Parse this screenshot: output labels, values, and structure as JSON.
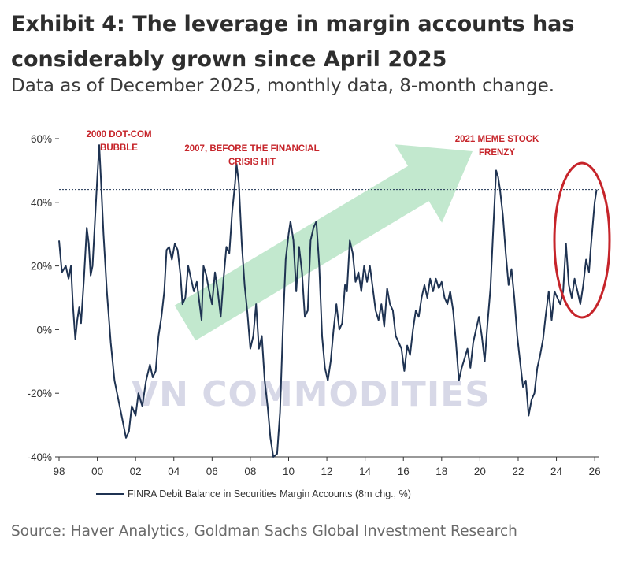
{
  "header": {
    "title": "Exhibit 4: The leverage in margin accounts has considerably grown since April 2025",
    "subtitle": "Data as of December 2025, monthly data, 8-month change."
  },
  "footer": {
    "source": "Source: Haver Analytics, Goldman Sachs Global Investment Research"
  },
  "watermark": {
    "text": "VN COMMODITIES"
  },
  "annotations": {
    "dotcom": [
      "2000 DOT-COM",
      "BUBBLE"
    ],
    "gfc": [
      "2007, BEFORE THE FINANCIAL",
      "CRISIS HIT"
    ],
    "meme": [
      "2021 MEME STOCK",
      "FRENZY"
    ]
  },
  "colors": {
    "line": "#1f3352",
    "annotation": "#c6242a",
    "circle": "#c6242a",
    "arrow": "#8fd5a6",
    "reference_line": "#1f3352"
  },
  "chart_data": {
    "type": "line",
    "title": "",
    "xlabel": "",
    "ylabel": "",
    "x_range": [
      1998,
      2026.2
    ],
    "xtick_labels": [
      "98",
      "00",
      "02",
      "04",
      "06",
      "08",
      "10",
      "12",
      "14",
      "16",
      "18",
      "20",
      "22",
      "24",
      "26"
    ],
    "ylim": [
      -40,
      60
    ],
    "ytick_labels": [
      "60%",
      "40%",
      "20%",
      "0%",
      "-20%",
      "-40%"
    ],
    "grid": false,
    "reference_line_y": 44,
    "legend_position": "bottom",
    "series": [
      {
        "name": "FINRA Debit Balance in Securities Margin Accounts (8m chg., %)",
        "points": [
          [
            1998.0,
            28
          ],
          [
            1998.15,
            18
          ],
          [
            1998.35,
            20
          ],
          [
            1998.5,
            16
          ],
          [
            1998.62,
            20
          ],
          [
            1998.72,
            8
          ],
          [
            1998.85,
            -3
          ],
          [
            1998.95,
            3
          ],
          [
            1999.05,
            7
          ],
          [
            1999.15,
            2
          ],
          [
            1999.3,
            16
          ],
          [
            1999.45,
            32
          ],
          [
            1999.55,
            27
          ],
          [
            1999.65,
            17
          ],
          [
            1999.75,
            20
          ],
          [
            1999.9,
            37
          ],
          [
            2000.0,
            48
          ],
          [
            2000.1,
            58
          ],
          [
            2000.2,
            46
          ],
          [
            2000.32,
            30
          ],
          [
            2000.5,
            12
          ],
          [
            2000.7,
            -4
          ],
          [
            2000.9,
            -16
          ],
          [
            2001.1,
            -22
          ],
          [
            2001.3,
            -28
          ],
          [
            2001.5,
            -34
          ],
          [
            2001.65,
            -32
          ],
          [
            2001.8,
            -24
          ],
          [
            2002.0,
            -27
          ],
          [
            2002.15,
            -20
          ],
          [
            2002.35,
            -24
          ],
          [
            2002.55,
            -16
          ],
          [
            2002.75,
            -11
          ],
          [
            2002.9,
            -15
          ],
          [
            2003.05,
            -13
          ],
          [
            2003.2,
            -2
          ],
          [
            2003.35,
            4
          ],
          [
            2003.5,
            12
          ],
          [
            2003.62,
            25
          ],
          [
            2003.75,
            26
          ],
          [
            2003.9,
            22
          ],
          [
            2004.05,
            27
          ],
          [
            2004.2,
            25
          ],
          [
            2004.35,
            17
          ],
          [
            2004.45,
            8
          ],
          [
            2004.6,
            10
          ],
          [
            2004.75,
            20
          ],
          [
            2004.9,
            16
          ],
          [
            2005.05,
            12
          ],
          [
            2005.2,
            15
          ],
          [
            2005.35,
            8
          ],
          [
            2005.45,
            3
          ],
          [
            2005.55,
            20
          ],
          [
            2005.7,
            17
          ],
          [
            2005.85,
            12
          ],
          [
            2006.0,
            8
          ],
          [
            2006.15,
            18
          ],
          [
            2006.3,
            12
          ],
          [
            2006.45,
            4
          ],
          [
            2006.6,
            16
          ],
          [
            2006.75,
            26
          ],
          [
            2006.9,
            24
          ],
          [
            2007.05,
            37
          ],
          [
            2007.2,
            46
          ],
          [
            2007.28,
            52
          ],
          [
            2007.4,
            46
          ],
          [
            2007.55,
            27
          ],
          [
            2007.7,
            14
          ],
          [
            2007.85,
            5
          ],
          [
            2008.0,
            -6
          ],
          [
            2008.15,
            -2
          ],
          [
            2008.3,
            8
          ],
          [
            2008.45,
            -6
          ],
          [
            2008.6,
            -2
          ],
          [
            2008.75,
            -16
          ],
          [
            2008.9,
            -24
          ],
          [
            2009.05,
            -34
          ],
          [
            2009.2,
            -40
          ],
          [
            2009.4,
            -39
          ],
          [
            2009.55,
            -26
          ],
          [
            2009.7,
            0
          ],
          [
            2009.85,
            22
          ],
          [
            2010.0,
            30
          ],
          [
            2010.1,
            34
          ],
          [
            2010.25,
            28
          ],
          [
            2010.4,
            12
          ],
          [
            2010.55,
            26
          ],
          [
            2010.7,
            18
          ],
          [
            2010.85,
            4
          ],
          [
            2011.0,
            6
          ],
          [
            2011.15,
            28
          ],
          [
            2011.3,
            32
          ],
          [
            2011.45,
            34
          ],
          [
            2011.6,
            20
          ],
          [
            2011.75,
            -2
          ],
          [
            2011.9,
            -12
          ],
          [
            2012.05,
            -16
          ],
          [
            2012.2,
            -10
          ],
          [
            2012.35,
            0
          ],
          [
            2012.5,
            8
          ],
          [
            2012.65,
            0
          ],
          [
            2012.8,
            2
          ],
          [
            2012.95,
            14
          ],
          [
            2013.05,
            12
          ],
          [
            2013.2,
            28
          ],
          [
            2013.35,
            24
          ],
          [
            2013.5,
            15
          ],
          [
            2013.65,
            18
          ],
          [
            2013.8,
            12
          ],
          [
            2013.95,
            20
          ],
          [
            2014.1,
            15
          ],
          [
            2014.25,
            20
          ],
          [
            2014.4,
            13
          ],
          [
            2014.55,
            6
          ],
          [
            2014.7,
            3
          ],
          [
            2014.85,
            8
          ],
          [
            2015.0,
            1
          ],
          [
            2015.15,
            13
          ],
          [
            2015.3,
            8
          ],
          [
            2015.45,
            6
          ],
          [
            2015.6,
            -2
          ],
          [
            2015.75,
            -4
          ],
          [
            2015.9,
            -6
          ],
          [
            2016.05,
            -13
          ],
          [
            2016.2,
            -5
          ],
          [
            2016.35,
            -8
          ],
          [
            2016.5,
            0
          ],
          [
            2016.65,
            6
          ],
          [
            2016.8,
            4
          ],
          [
            2016.95,
            10
          ],
          [
            2017.1,
            14
          ],
          [
            2017.25,
            10
          ],
          [
            2017.4,
            16
          ],
          [
            2017.55,
            12
          ],
          [
            2017.7,
            16
          ],
          [
            2017.85,
            13
          ],
          [
            2018.0,
            15
          ],
          [
            2018.15,
            10
          ],
          [
            2018.3,
            8
          ],
          [
            2018.45,
            12
          ],
          [
            2018.6,
            6
          ],
          [
            2018.75,
            -4
          ],
          [
            2018.9,
            -16
          ],
          [
            2019.05,
            -12
          ],
          [
            2019.2,
            -9
          ],
          [
            2019.35,
            -6
          ],
          [
            2019.5,
            -12
          ],
          [
            2019.65,
            -4
          ],
          [
            2019.8,
            0
          ],
          [
            2019.95,
            4
          ],
          [
            2020.1,
            -2
          ],
          [
            2020.25,
            -10
          ],
          [
            2020.4,
            2
          ],
          [
            2020.55,
            13
          ],
          [
            2020.7,
            32
          ],
          [
            2020.85,
            50
          ],
          [
            2020.95,
            48
          ],
          [
            2021.05,
            44
          ],
          [
            2021.2,
            36
          ],
          [
            2021.35,
            24
          ],
          [
            2021.5,
            14
          ],
          [
            2021.65,
            19
          ],
          [
            2021.8,
            10
          ],
          [
            2021.95,
            -2
          ],
          [
            2022.1,
            -10
          ],
          [
            2022.25,
            -18
          ],
          [
            2022.4,
            -16
          ],
          [
            2022.55,
            -27
          ],
          [
            2022.7,
            -22
          ],
          [
            2022.85,
            -20
          ],
          [
            2023.0,
            -12
          ],
          [
            2023.15,
            -8
          ],
          [
            2023.3,
            -3
          ],
          [
            2023.45,
            5
          ],
          [
            2023.6,
            12
          ],
          [
            2023.75,
            3
          ],
          [
            2023.9,
            12
          ],
          [
            2024.05,
            10
          ],
          [
            2024.2,
            8
          ],
          [
            2024.35,
            12
          ],
          [
            2024.5,
            27
          ],
          [
            2024.65,
            14
          ],
          [
            2024.8,
            10
          ],
          [
            2024.95,
            16
          ],
          [
            2025.1,
            12
          ],
          [
            2025.25,
            8
          ],
          [
            2025.4,
            14
          ],
          [
            2025.55,
            22
          ],
          [
            2025.7,
            18
          ],
          [
            2025.8,
            26
          ],
          [
            2025.9,
            33
          ],
          [
            2026.0,
            40
          ],
          [
            2026.1,
            44
          ]
        ]
      }
    ]
  }
}
